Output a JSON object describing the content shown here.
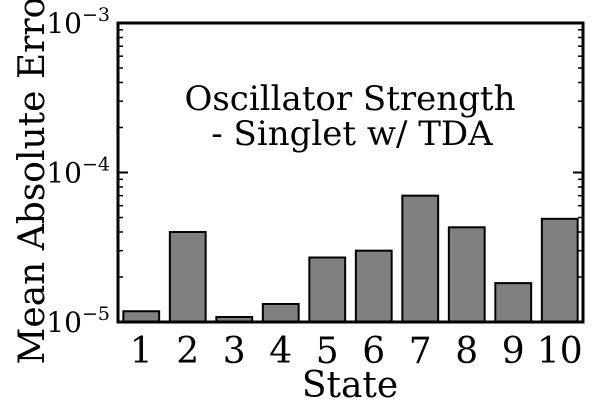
{
  "chart_data": {
    "type": "bar",
    "title_lines": [
      "Oscillator Strength",
      "- Singlet w/ TDA"
    ],
    "xlabel": "State",
    "ylabel": "Mean Absolute Error",
    "yscale": "log",
    "ylim": [
      1e-05,
      0.001
    ],
    "yticks": [
      {
        "label_base": "10",
        "label_exp": "−5",
        "value": 1e-05
      },
      {
        "label_base": "10",
        "label_exp": "−4",
        "value": 0.0001
      },
      {
        "label_base": "10",
        "label_exp": "−3",
        "value": 0.001
      }
    ],
    "categories": [
      "1",
      "2",
      "3",
      "4",
      "5",
      "6",
      "7",
      "8",
      "9",
      "10"
    ],
    "values": [
      1.18e-05,
      4e-05,
      1.08e-05,
      1.32e-05,
      2.7e-05,
      3e-05,
      7e-05,
      4.3e-05,
      1.82e-05,
      4.9e-05
    ],
    "bar_color": "#808080",
    "grid": false,
    "legend": "none"
  }
}
